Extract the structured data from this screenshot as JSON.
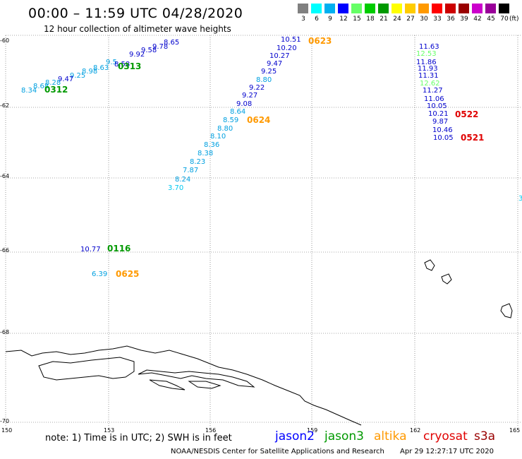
{
  "header": {
    "title": "00:00 – 11:59 UTC 04/28/2020",
    "subtitle": "12 hour collection of altimeter wave heights"
  },
  "color_scale": {
    "labels": [
      "3",
      "6",
      "9",
      "12",
      "15",
      "18",
      "21",
      "24",
      "27",
      "30",
      "33",
      "36",
      "39",
      "42",
      "45",
      "70"
    ],
    "unit": "(ft)",
    "colors": [
      "#808080",
      "#00ffff",
      "#00b0f0",
      "#0000ff",
      "#66ff66",
      "#00cc00",
      "#009900",
      "#ffff00",
      "#ffcc00",
      "#ff9900",
      "#ff0000",
      "#cc0000",
      "#990000",
      "#cc00cc",
      "#990099",
      "#000000"
    ]
  },
  "axes": {
    "lat_labels": [
      "-60",
      "-62",
      "-64",
      "-66",
      "-68",
      "-70"
    ],
    "lon_labels": [
      "150",
      "153",
      "156",
      "159",
      "162",
      "165"
    ]
  },
  "observations": [
    {
      "v": "8.65",
      "c": "#0000cc"
    },
    {
      "v": "9.78",
      "c": "#0000cc"
    },
    {
      "v": "9.58",
      "c": "#0000cc"
    },
    {
      "v": "9.92",
      "c": "#0000cc"
    },
    {
      "v": "9.5",
      "c": "#00a0e0"
    },
    {
      "v": "8.58",
      "c": "#0000cc"
    },
    {
      "v": "8.63",
      "c": "#00a0e0"
    },
    {
      "v": "8.98",
      "c": "#00a0e0"
    },
    {
      "v": "9.25",
      "c": "#00a0e0"
    },
    {
      "v": "9.47",
      "c": "#0000cc"
    },
    {
      "v": "8.28",
      "c": "#00a0e0"
    },
    {
      "v": "8.68",
      "c": "#00a0e0"
    },
    {
      "v": "8.34",
      "c": "#00a0e0"
    },
    {
      "v": "10.51",
      "c": "#0000cc"
    },
    {
      "v": "10.20",
      "c": "#0000cc"
    },
    {
      "v": "10.27",
      "c": "#0000cc"
    },
    {
      "v": "9.47",
      "c": "#0000cc"
    },
    {
      "v": "9.25",
      "c": "#0000cc"
    },
    {
      "v": "8.80",
      "c": "#00a0e0"
    },
    {
      "v": "9.22",
      "c": "#0000cc"
    },
    {
      "v": "9.27",
      "c": "#0000cc"
    },
    {
      "v": "9.08",
      "c": "#0000cc"
    },
    {
      "v": "8.64",
      "c": "#00a0e0"
    },
    {
      "v": "8.59",
      "c": "#00a0e0"
    },
    {
      "v": "8.80",
      "c": "#00a0e0"
    },
    {
      "v": "8.10",
      "c": "#00a0e0"
    },
    {
      "v": "8.36",
      "c": "#00a0e0"
    },
    {
      "v": "8.38",
      "c": "#00a0e0"
    },
    {
      "v": "8.23",
      "c": "#00a0e0"
    },
    {
      "v": "7.87",
      "c": "#00a0e0"
    },
    {
      "v": "8.24",
      "c": "#00a0e0"
    },
    {
      "v": "3.70",
      "c": "#00c8f0"
    },
    {
      "v": "11.63",
      "c": "#0000cc"
    },
    {
      "v": "12.53",
      "c": "#66ff66"
    },
    {
      "v": "11.86",
      "c": "#0000cc"
    },
    {
      "v": "11.93",
      "c": "#0000cc"
    },
    {
      "v": "11.31",
      "c": "#0000cc"
    },
    {
      "v": "12.62",
      "c": "#66ff66"
    },
    {
      "v": "11.27",
      "c": "#0000cc"
    },
    {
      "v": "11.06",
      "c": "#0000cc"
    },
    {
      "v": "10.05",
      "c": "#0000cc"
    },
    {
      "v": "10.21",
      "c": "#0000cc"
    },
    {
      "v": "9.87",
      "c": "#0000cc"
    },
    {
      "v": "10.46",
      "c": "#0000cc"
    },
    {
      "v": "10.05",
      "c": "#0000cc"
    },
    {
      "v": "3",
      "c": "#00c8f0"
    },
    {
      "v": "10.77",
      "c": "#0000cc"
    },
    {
      "v": "6.39",
      "c": "#00a0e0"
    }
  ],
  "time_tags": [
    {
      "t": "0623",
      "c": "#ff9900"
    },
    {
      "t": "0313",
      "c": "#009900"
    },
    {
      "t": "0312",
      "c": "#009900"
    },
    {
      "t": "0624",
      "c": "#ff9900"
    },
    {
      "t": "0522",
      "c": "#e00000"
    },
    {
      "t": "0521",
      "c": "#e00000"
    },
    {
      "t": "0116",
      "c": "#009900"
    },
    {
      "t": "0625",
      "c": "#ff9900"
    }
  ],
  "note": "note:  1) Time is in UTC;  2) SWH is in feet",
  "satellites": [
    {
      "name": "jason2",
      "color": "#0000ff"
    },
    {
      "name": "jason3",
      "color": "#009900"
    },
    {
      "name": "altika",
      "color": "#ff9900"
    },
    {
      "name": "cryosat",
      "color": "#e00000"
    },
    {
      "name": "s3a",
      "color": "#990000"
    }
  ],
  "footer": {
    "credit": "NOAA/NESDIS Center for Satellite Applications and Research",
    "timestamp": "Apr 29 12:27:17 UTC 2020"
  }
}
